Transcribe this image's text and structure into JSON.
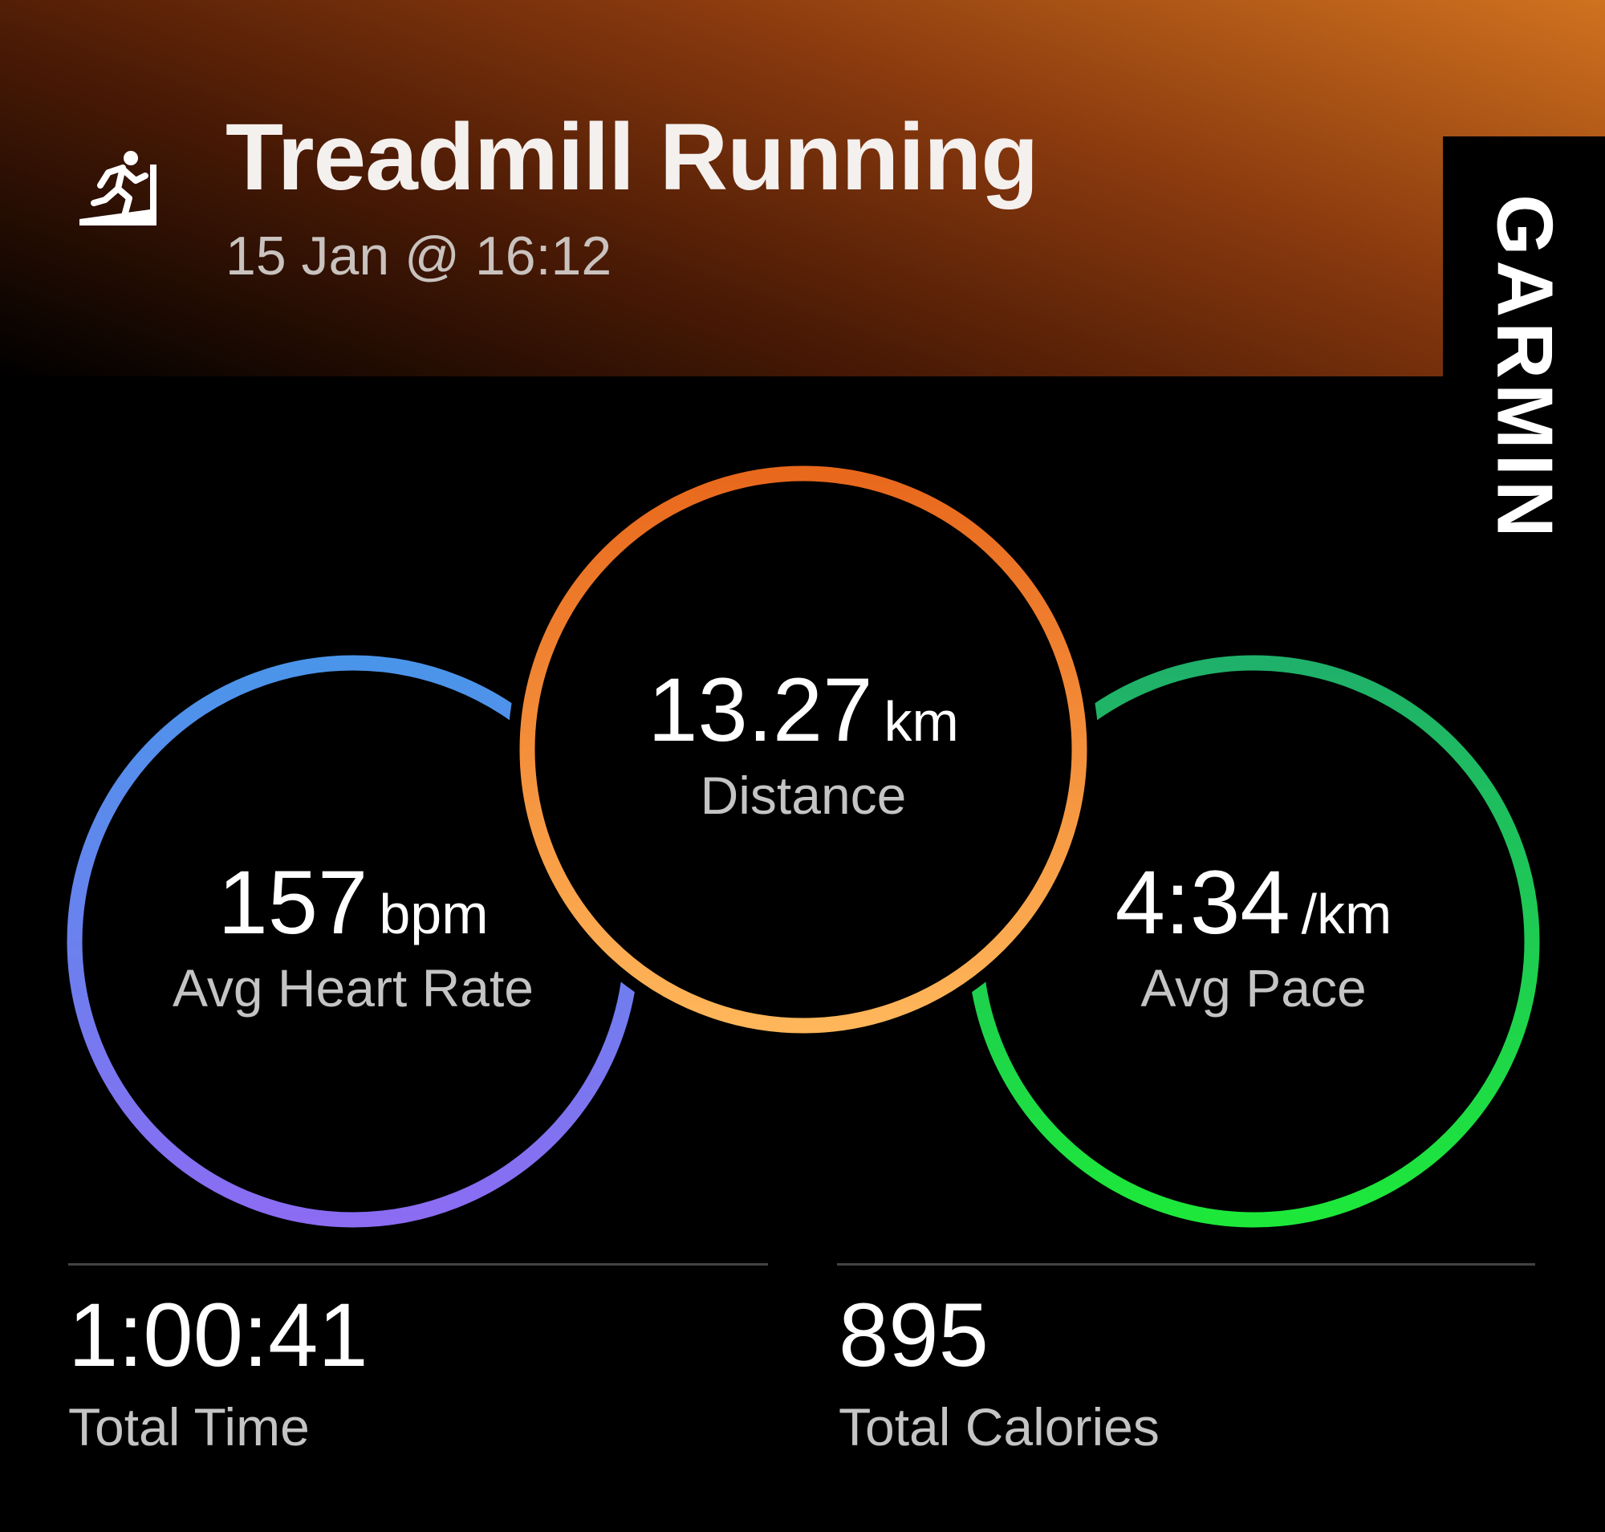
{
  "header": {
    "title": "Treadmill Running",
    "date": "15 Jan @ 16:12",
    "activity_icon": "treadmill-running-icon",
    "brand": "GARMIN"
  },
  "metrics": {
    "heart_rate": {
      "value": "157",
      "unit": "bpm",
      "label": "Avg Heart Rate",
      "colors": [
        "#4a95ea",
        "#8b6cf2"
      ]
    },
    "distance": {
      "value": "13.27",
      "unit": "km",
      "label": "Distance",
      "colors": [
        "#e8681c",
        "#ffb65a"
      ]
    },
    "pace": {
      "value": "4:34",
      "unit": "/km",
      "label": "Avg Pace",
      "colors": [
        "#1fb06a",
        "#1de83a"
      ]
    }
  },
  "stats": {
    "total_time": {
      "value": "1:00:41",
      "label": "Total Time"
    },
    "total_calories": {
      "value": "895",
      "label": "Total Calories"
    }
  }
}
